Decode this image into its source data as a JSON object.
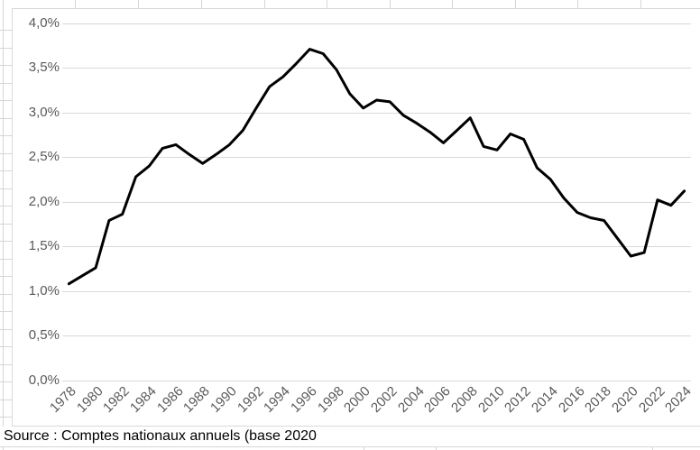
{
  "source_note": "Source : Comptes nationaux annuels (base 2020",
  "colors": {
    "line": "#000000",
    "chart_gridline": "#d9d9d9",
    "axis_text": "#595959",
    "sheet_gridline": "#d6d6d6",
    "background": "#ffffff"
  },
  "chart_data": {
    "type": "line",
    "title": "",
    "legend": "none",
    "grid": "horizontal",
    "x": [
      1978,
      1979,
      1980,
      1981,
      1982,
      1983,
      1984,
      1985,
      1986,
      1987,
      1988,
      1989,
      1990,
      1991,
      1992,
      1993,
      1994,
      1995,
      1996,
      1997,
      1998,
      1999,
      2000,
      2001,
      2002,
      2003,
      2004,
      2005,
      2006,
      2007,
      2008,
      2009,
      2010,
      2011,
      2012,
      2013,
      2014,
      2015,
      2016,
      2017,
      2018,
      2019,
      2020,
      2021,
      2022,
      2023,
      2024
    ],
    "series": [
      {
        "name": "",
        "values": [
          1.08,
          1.17,
          1.26,
          1.79,
          1.86,
          2.28,
          2.4,
          2.6,
          2.64,
          2.53,
          2.43,
          2.53,
          2.64,
          2.8,
          3.05,
          3.29,
          3.4,
          3.55,
          3.71,
          3.66,
          3.48,
          3.21,
          3.05,
          3.14,
          3.12,
          2.97,
          2.88,
          2.78,
          2.66,
          2.8,
          2.94,
          2.62,
          2.58,
          2.76,
          2.7,
          2.38,
          2.25,
          2.04,
          1.88,
          1.82,
          1.79,
          1.59,
          1.39,
          1.43,
          2.02,
          1.96,
          2.12
        ]
      }
    ],
    "y_axis": {
      "min": 0,
      "max": 4,
      "step": 0.5,
      "unit": "%",
      "format": "fr-percent-comma",
      "tick_labels": [
        "0,0%",
        "0,5%",
        "1,0%",
        "1,5%",
        "2,0%",
        "2,5%",
        "3,0%",
        "3,5%",
        "4,0%"
      ]
    },
    "x_axis": {
      "tick_step_years": 2,
      "label_rotation_deg": -45,
      "tick_labels": [
        "1978",
        "1980",
        "1982",
        "1984",
        "1986",
        "1988",
        "1990",
        "1992",
        "1994",
        "1996",
        "1998",
        "2000",
        "2002",
        "2004",
        "2006",
        "2008",
        "2010",
        "2012",
        "2014",
        "2016",
        "2018",
        "2020",
        "2022",
        "2024"
      ]
    }
  }
}
